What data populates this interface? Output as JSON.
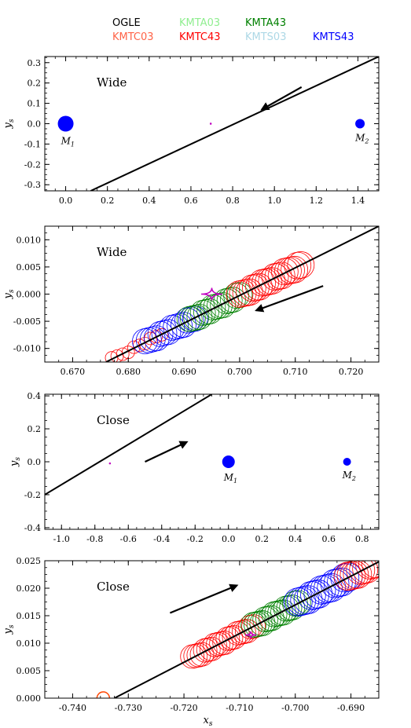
{
  "legend": [
    {
      "name": "OGLE",
      "color": "#000000"
    },
    {
      "name": "KMTA03",
      "color": "#90ee90"
    },
    {
      "name": "KMTA43",
      "color": "#008000"
    },
    {
      "name": "KMTC03",
      "color": "#ff6347"
    },
    {
      "name": "KMTC43",
      "color": "#ff0000"
    },
    {
      "name": "KMTS03",
      "color": "#add8e6"
    },
    {
      "name": "KMTS43",
      "color": "#0000ff"
    }
  ],
  "chart_data": [
    {
      "type": "scatter",
      "panel_label": "Wide",
      "xlabel": "",
      "ylabel": "y_s",
      "xlim": [
        -0.1,
        1.5
      ],
      "ylim": [
        -0.33,
        0.33
      ],
      "xticks": [
        "0.0",
        "0.2",
        "0.4",
        "0.6",
        "0.8",
        "1.0",
        "1.2",
        "1.4"
      ],
      "xtick_values": [
        0.0,
        0.2,
        0.4,
        0.6,
        0.8,
        1.0,
        1.2,
        1.4
      ],
      "yticks": [
        "-0.3",
        "-0.2",
        "-0.1",
        "0.0",
        "0.1",
        "0.2",
        "0.3"
      ],
      "ytick_values": [
        -0.3,
        -0.2,
        -0.1,
        0.0,
        0.1,
        0.2,
        0.3
      ],
      "trajectory": [
        [
          0.12,
          -0.33
        ],
        [
          1.5,
          0.33
        ]
      ],
      "arrow": {
        "from": [
          1.13,
          0.18
        ],
        "to": [
          0.94,
          0.07
        ]
      },
      "masses": [
        {
          "label": "M",
          "sub": "1",
          "x": 0.0,
          "y": 0.0,
          "r": 10
        },
        {
          "label": "M",
          "sub": "2",
          "x": 1.41,
          "y": 0.0,
          "r": 6
        }
      ],
      "caustic": {
        "cx": 0.695,
        "cy": 0.0,
        "w": 0.004,
        "h": 0.005
      },
      "tracks": []
    },
    {
      "type": "scatter",
      "panel_label": "Wide",
      "xlabel": "",
      "ylabel": "y_s",
      "xlim": [
        0.665,
        0.725
      ],
      "ylim": [
        -0.0125,
        0.0125
      ],
      "xticks": [
        "0.670",
        "0.680",
        "0.690",
        "0.700",
        "0.710",
        "0.720"
      ],
      "xtick_values": [
        0.67,
        0.68,
        0.69,
        0.7,
        0.71,
        0.72
      ],
      "yticks": [
        "-0.010",
        "-0.005",
        "0.000",
        "0.005",
        "0.010"
      ],
      "ytick_values": [
        -0.01,
        -0.005,
        0.0,
        0.005,
        0.01
      ],
      "trajectory": [
        [
          0.676,
          -0.0125
        ],
        [
          0.725,
          0.0125
        ]
      ],
      "arrow": {
        "from": [
          0.715,
          0.0015
        ],
        "to": [
          0.703,
          -0.003
        ]
      },
      "masses": [],
      "caustic": {
        "cx": 0.695,
        "cy": 0.0,
        "w": 0.0038,
        "h": 0.0023
      },
      "tracks": [
        {
          "color": "#ff0000",
          "x0": 0.677,
          "x1": 0.686,
          "n": 10,
          "r": 8
        },
        {
          "color": "#0000ff",
          "x0": 0.683,
          "x1": 0.692,
          "n": 14,
          "r": 16
        },
        {
          "color": "#008000",
          "x0": 0.691,
          "x1": 0.7,
          "n": 16,
          "r": 16
        },
        {
          "color": "#ff0000",
          "x0": 0.7,
          "x1": 0.711,
          "n": 20,
          "r": 17
        }
      ]
    },
    {
      "type": "scatter",
      "panel_label": "Close",
      "xlabel": "",
      "ylabel": "y_s",
      "xlim": [
        -1.1,
        0.9
      ],
      "ylim": [
        -0.41,
        0.41
      ],
      "xticks": [
        "-1.0",
        "-0.8",
        "-0.6",
        "-0.4",
        "-0.2",
        "0.0",
        "0.2",
        "0.4",
        "0.6",
        "0.8"
      ],
      "xtick_values": [
        -1.0,
        -0.8,
        -0.6,
        -0.4,
        -0.2,
        0.0,
        0.2,
        0.4,
        0.6,
        0.8
      ],
      "yticks": [
        "-0.4",
        "-0.2",
        "0.0",
        "0.2",
        "0.4"
      ],
      "ytick_values": [
        -0.4,
        -0.2,
        0.0,
        0.2,
        0.4
      ],
      "trajectory": [
        [
          -1.1,
          -0.2
        ],
        [
          -0.1,
          0.41
        ]
      ],
      "arrow": {
        "from": [
          -0.5,
          0.0
        ],
        "to": [
          -0.25,
          0.12
        ]
      },
      "masses": [
        {
          "label": "M",
          "sub": "1",
          "x": 0.0,
          "y": 0.0,
          "r": 8
        },
        {
          "label": "M",
          "sub": "2",
          "x": 0.71,
          "y": 0.0,
          "r": 5
        }
      ],
      "caustic": {
        "cx": -0.71,
        "cy": -0.01,
        "w": 0.004,
        "h": 0.008
      },
      "tracks": []
    },
    {
      "type": "scatter",
      "panel_label": "Close",
      "xlabel": "x_s",
      "ylabel": "y_s",
      "xlim": [
        -0.745,
        -0.685
      ],
      "ylim": [
        0.0,
        0.025
      ],
      "xticks": [
        "-0.740",
        "-0.730",
        "-0.720",
        "-0.710",
        "-0.700",
        "-0.690"
      ],
      "xtick_values": [
        -0.74,
        -0.73,
        -0.72,
        -0.71,
        -0.7,
        -0.69
      ],
      "yticks": [
        "0.000",
        "0.005",
        "0.010",
        "0.015",
        "0.020",
        "0.025"
      ],
      "ytick_values": [
        0.0,
        0.005,
        0.01,
        0.015,
        0.02,
        0.025
      ],
      "trajectory": [
        [
          -0.7325,
          0.0
        ],
        [
          -0.685,
          0.0248
        ]
      ],
      "arrow": {
        "from": [
          -0.7225,
          0.0155
        ],
        "to": [
          -0.7105,
          0.0205
        ]
      },
      "masses": [],
      "caustic": {
        "cx": -0.708,
        "cy": 0.0115,
        "w": 0.002,
        "h": 0.0013
      },
      "tracks": [
        {
          "color": "#ff0000",
          "x0": -0.7185,
          "x1": -0.7075,
          "n": 20,
          "r": 15
        },
        {
          "color": "#008000",
          "x0": -0.7075,
          "x1": -0.6995,
          "n": 16,
          "r": 16
        },
        {
          "color": "#0000ff",
          "x0": -0.6995,
          "x1": -0.6905,
          "n": 16,
          "r": 18
        },
        {
          "color": "#ff0000",
          "x0": -0.6905,
          "x1": -0.6855,
          "n": 10,
          "r": 18
        }
      ],
      "partial_circle": {
        "x": -0.7345,
        "y": 0.0,
        "r": 8,
        "color": "#ff4500"
      }
    }
  ]
}
